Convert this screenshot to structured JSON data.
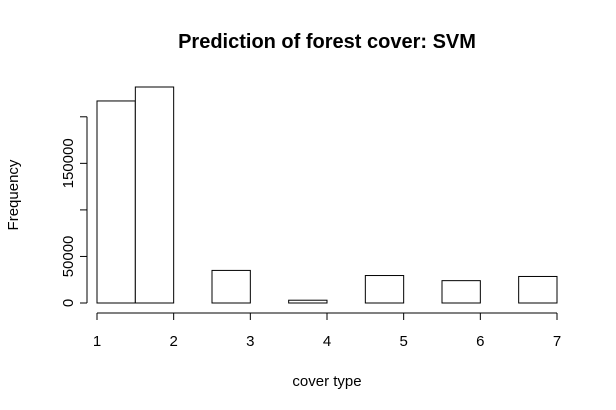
{
  "chart_data": {
    "type": "bar",
    "title": "Prediction of forest cover: SVM",
    "xlabel": "cover type",
    "ylabel": "Frequency",
    "bins": [
      {
        "x0": 1.0,
        "x1": 1.5,
        "value": 217000
      },
      {
        "x0": 1.5,
        "x1": 2.0,
        "value": 232000
      },
      {
        "x0": 2.0,
        "x1": 2.5,
        "value": 0
      },
      {
        "x0": 2.5,
        "x1": 3.0,
        "value": 35000
      },
      {
        "x0": 3.0,
        "x1": 3.5,
        "value": 0
      },
      {
        "x0": 3.5,
        "x1": 4.0,
        "value": 3000
      },
      {
        "x0": 4.0,
        "x1": 4.5,
        "value": 0
      },
      {
        "x0": 4.5,
        "x1": 5.0,
        "value": 29500
      },
      {
        "x0": 5.0,
        "x1": 5.5,
        "value": 0
      },
      {
        "x0": 5.5,
        "x1": 6.0,
        "value": 24000
      },
      {
        "x0": 6.0,
        "x1": 6.5,
        "value": 0
      },
      {
        "x0": 6.5,
        "x1": 7.0,
        "value": 28500
      }
    ],
    "xlim": [
      1,
      7
    ],
    "ylim": [
      0,
      232000
    ],
    "xticks": [
      "1",
      "2",
      "3",
      "4",
      "5",
      "6",
      "7"
    ],
    "xtick_values": [
      1,
      2,
      3,
      4,
      5,
      6,
      7
    ],
    "yticks": [
      "0",
      "50000",
      "150000"
    ],
    "ytick_values": [
      0,
      50000,
      150000
    ],
    "yaxis_extra_ticks": [
      100000,
      200000
    ],
    "grid": false,
    "legend": "none"
  }
}
